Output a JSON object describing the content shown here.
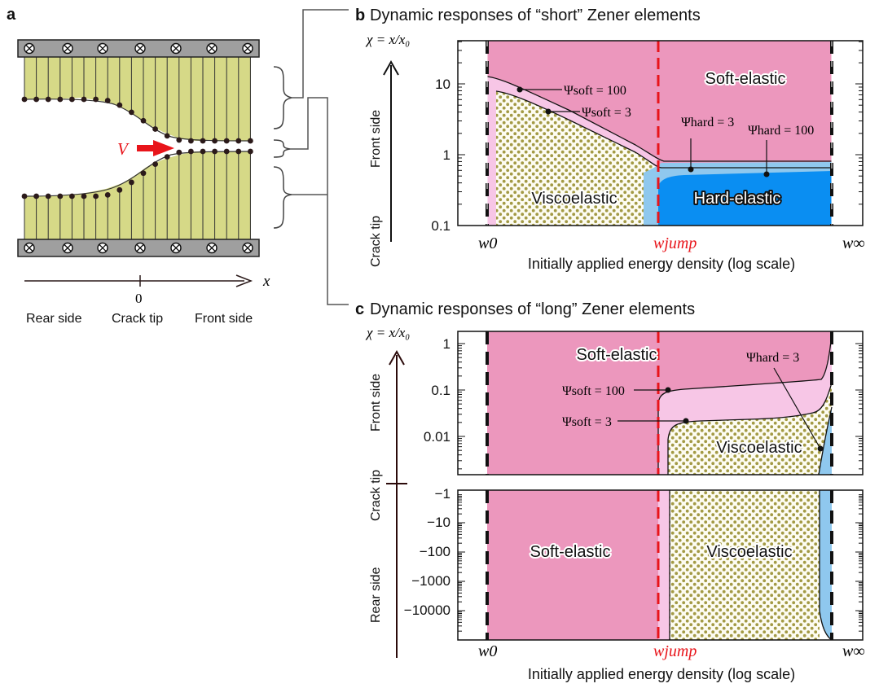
{
  "panel_a": {
    "letter": "a",
    "velocity": "V",
    "axis_var": "x",
    "axis_zero": "0",
    "rear": "Rear side",
    "tip": "Crack tip",
    "front": "Front side"
  },
  "panel_b": {
    "letter": "b",
    "title": "Dynamic responses of “short” Zener elements",
    "chi_label": "χ = x/x₀",
    "yaxis_front": "Front side",
    "yaxis_tip": "Crack tip",
    "yticks": [
      "10",
      "1",
      "0.1"
    ],
    "region_soft": "Soft-elastic",
    "region_visco": "Viscoelastic",
    "region_hard": "Hard-elastic",
    "ann_soft100": "Ψsoft = 100",
    "ann_soft3": "Ψsoft = 3",
    "ann_hard3": "Ψhard = 3",
    "ann_hard100": "Ψhard = 100",
    "w0": "w0",
    "wjump": "wjump",
    "winf": "w∞",
    "xlabel": "Initially applied energy density (log scale)"
  },
  "panel_c": {
    "letter": "c",
    "title": "Dynamic responses of “long” Zener elements",
    "chi_label": "χ = x/x₀",
    "yaxis_front": "Front side",
    "yaxis_tip": "Crack tip",
    "yaxis_rear": "Rear side",
    "yticks_top": [
      "1",
      "0.1",
      "0.01"
    ],
    "yticks_bottom": [
      "−1",
      "−10",
      "−100",
      "−1000",
      "−10000"
    ],
    "region_soft_top": "Soft-elastic",
    "region_visco_top": "Viscoelastic",
    "region_soft_bottom": "Soft-elastic",
    "region_visco_bottom": "Viscoelastic",
    "ann_hard3": "Ψhard = 3",
    "ann_soft100": "Ψsoft = 100",
    "ann_soft3": "Ψsoft = 3",
    "w0": "w0",
    "wjump": "wjump",
    "winf": "w∞",
    "xlabel": "Initially applied energy density (log scale)"
  },
  "colors": {
    "soft": "#ec97bd",
    "soft_light": "#f7c6e6",
    "visco": "#a39a45",
    "hard": "#0a8ef2",
    "hard_light": "#8fc8ee",
    "spring": "#d6d987",
    "plate": "#9f9f9f",
    "red": "#e8141a"
  }
}
